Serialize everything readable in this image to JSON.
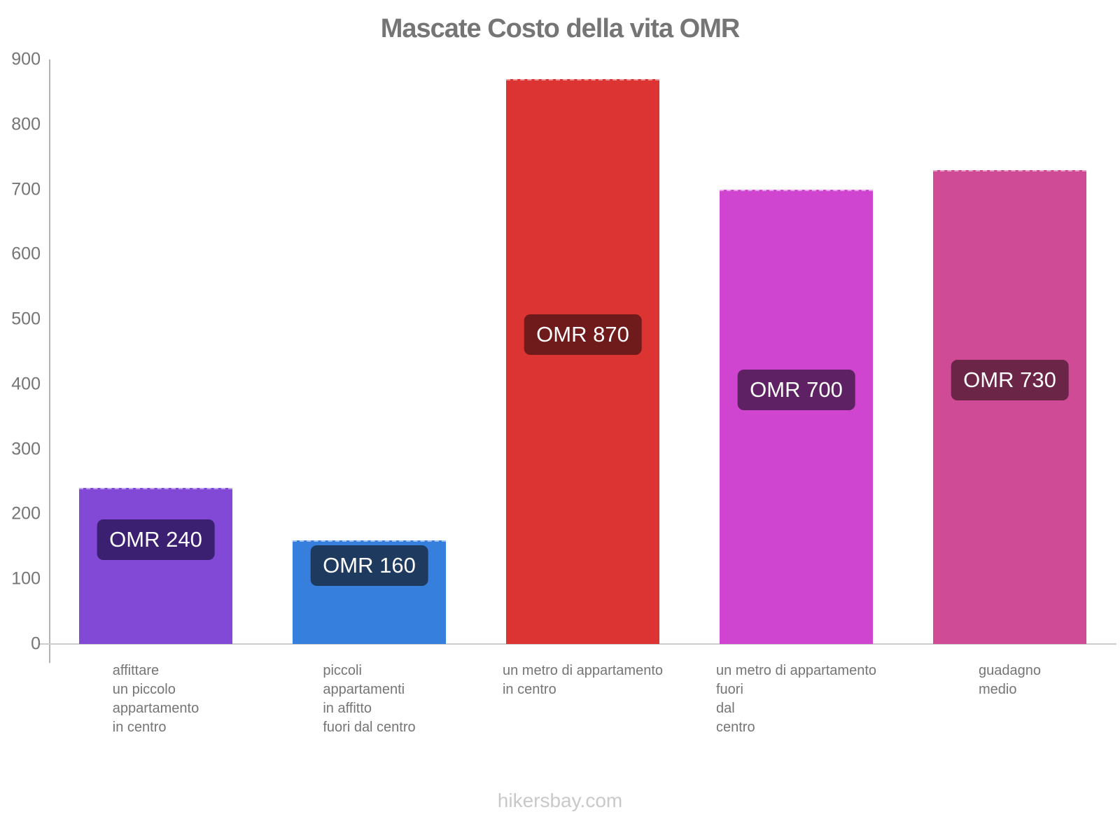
{
  "title": "Mascate Costo della vita OMR",
  "footer": "hikersbay.com",
  "colors": {
    "title_text": "#757575",
    "axis_line": "#b3b3b3",
    "baseline": "#cccccc",
    "tick_text": "#757575",
    "category_text": "#757575",
    "footer_text": "#c9c9c9",
    "value_text": "#ffffff"
  },
  "chart_data": {
    "type": "bar",
    "title": "Mascate Costo della vita OMR",
    "currency": "OMR",
    "xlabel": "",
    "ylabel": "",
    "ylim": [
      0,
      900
    ],
    "yticks": [
      0,
      100,
      200,
      300,
      400,
      500,
      600,
      700,
      800,
      900
    ],
    "grid": false,
    "legend": "none",
    "categories": [
      [
        "affittare",
        "un piccolo",
        "appartamento",
        "in centro"
      ],
      [
        "piccoli",
        "appartamenti",
        "in affitto",
        "fuori dal centro"
      ],
      [
        "un metro di appartamento",
        "in centro"
      ],
      [
        "un metro di appartamento",
        "fuori",
        "dal",
        "centro"
      ],
      [
        "guadagno",
        "medio"
      ]
    ],
    "values": [
      240,
      160,
      870,
      700,
      730
    ],
    "value_labels": [
      "OMR 240",
      "OMR 160",
      "OMR 870",
      "OMR 700",
      "OMR 730"
    ],
    "bar_colors": [
      "#8149d6",
      "#377fdd",
      "#dc3432",
      "#cf45d0",
      "#d04b96"
    ],
    "value_badge_colors": [
      "#3b1f71",
      "#1e3a5f",
      "#6f1b1b",
      "#5e2163",
      "#6b2547"
    ]
  }
}
